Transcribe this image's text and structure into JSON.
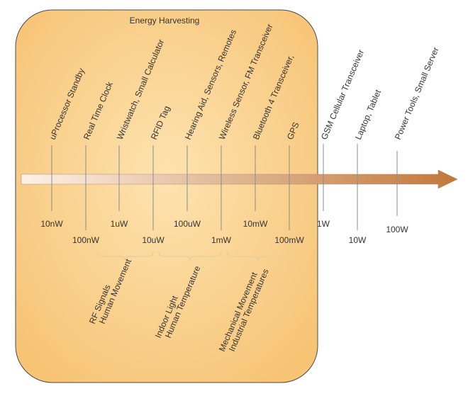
{
  "title": "Energy Harvesting",
  "colors": {
    "region_fill_center": "#fde3b0",
    "region_fill_edge": "#f7c476",
    "region_stroke": "#4a4a4a",
    "arrow_start": "#fdf1e6",
    "arrow_end": "#c2773a",
    "tick_line": "#8c8c8c",
    "brace": "#e6cfa3"
  },
  "applications": [
    {
      "label": "uProcessor Standby"
    },
    {
      "label": "Real Time Clock"
    },
    {
      "label": "Wristwatch, Small Calculator"
    },
    {
      "label": "RFID Tag"
    },
    {
      "label": "Hearing Aid, Sensors, Remotes"
    },
    {
      "label": "Wireless Sensor, FM Transceiver"
    },
    {
      "label": "Bluetooth 4 Transceiver,"
    },
    {
      "label": "GPS"
    },
    {
      "label": "GSM Cellular Transceiver"
    },
    {
      "label": "Laptop, Tablet"
    },
    {
      "label": "Power Tools, Small Server"
    }
  ],
  "power_levels": [
    {
      "label": "10nW"
    },
    {
      "label": "100nW"
    },
    {
      "label": "1uW"
    },
    {
      "label": "10uW"
    },
    {
      "label": "100uW"
    },
    {
      "label": "1mW"
    },
    {
      "label": "10mW"
    },
    {
      "label": "100mW"
    },
    {
      "label": "1W"
    },
    {
      "label": "10W"
    },
    {
      "label": "100W"
    }
  ],
  "sources": [
    {
      "line1": "RF Signals",
      "line2": "Human Movement"
    },
    {
      "line1": "Indoor Light",
      "line2": "Human Temperature"
    },
    {
      "line1": "Mechanical Movement",
      "line2": "Industrial Temperatures"
    }
  ]
}
